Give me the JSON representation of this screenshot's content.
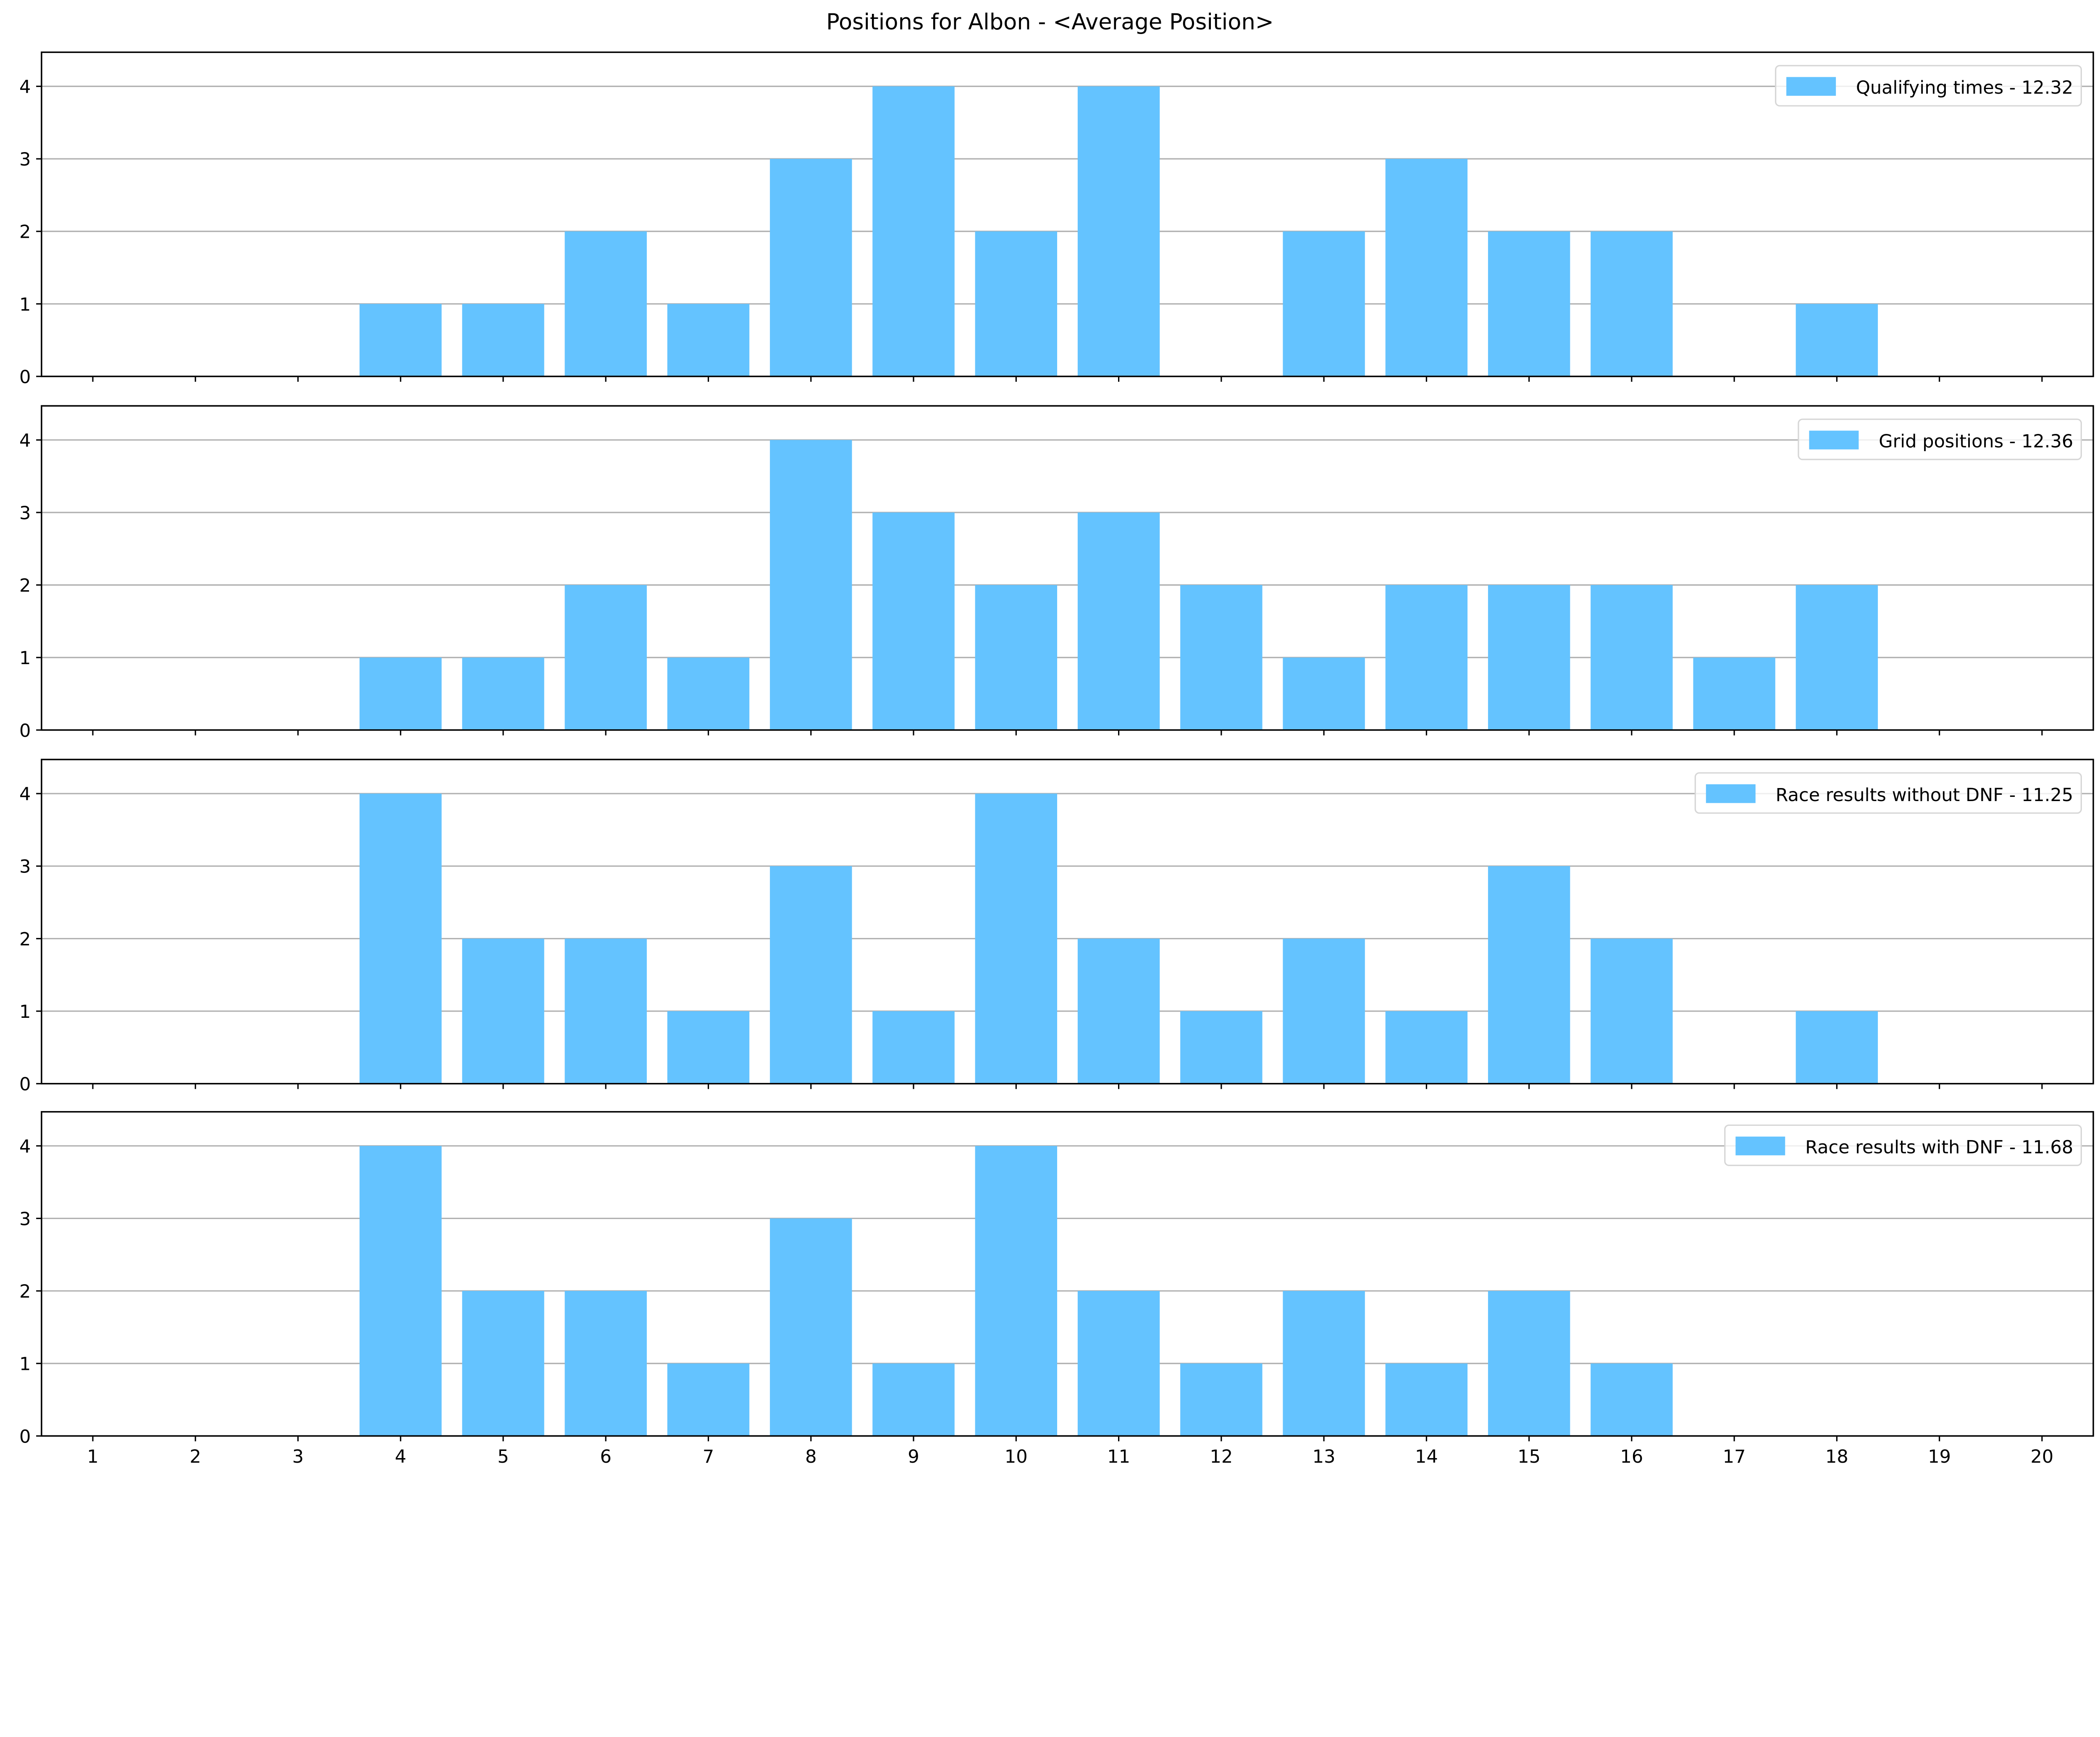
{
  "chart_data": [
    {
      "type": "bar",
      "title": "Positions for Albon - <Average Position>",
      "legend": "Qualifying times - 12.32",
      "legend_placement": "top-right",
      "categories": [
        1,
        2,
        3,
        4,
        5,
        6,
        7,
        8,
        9,
        10,
        11,
        12,
        13,
        14,
        15,
        16,
        17,
        18,
        19,
        20
      ],
      "values": [
        0,
        0,
        0,
        1,
        1,
        2,
        1,
        3,
        4,
        2,
        4,
        0,
        2,
        3,
        2,
        2,
        0,
        1,
        0,
        0
      ],
      "xlim": [
        0.5,
        20.5
      ],
      "ylim": [
        0,
        4.47
      ],
      "yticks": [
        0,
        1,
        2,
        3,
        4
      ],
      "grid": "y",
      "color": "#64c3ff"
    },
    {
      "type": "bar",
      "legend": "Grid positions - 12.36",
      "legend_placement": "top-right",
      "categories": [
        1,
        2,
        3,
        4,
        5,
        6,
        7,
        8,
        9,
        10,
        11,
        12,
        13,
        14,
        15,
        16,
        17,
        18,
        19,
        20
      ],
      "values": [
        0,
        0,
        0,
        1,
        1,
        2,
        1,
        4,
        3,
        2,
        3,
        2,
        1,
        2,
        2,
        2,
        1,
        2,
        0,
        0
      ],
      "xlim": [
        0.5,
        20.5
      ],
      "ylim": [
        0,
        4.47
      ],
      "yticks": [
        0,
        1,
        2,
        3,
        4
      ],
      "grid": "y",
      "color": "#64c3ff"
    },
    {
      "type": "bar",
      "legend": "Race results without DNF - 11.25",
      "legend_placement": "top-right",
      "categories": [
        1,
        2,
        3,
        4,
        5,
        6,
        7,
        8,
        9,
        10,
        11,
        12,
        13,
        14,
        15,
        16,
        17,
        18,
        19,
        20
      ],
      "values": [
        0,
        0,
        0,
        4,
        2,
        2,
        1,
        3,
        1,
        4,
        2,
        1,
        2,
        1,
        3,
        2,
        0,
        1,
        0,
        0
      ],
      "xlim": [
        0.5,
        20.5
      ],
      "ylim": [
        0,
        4.47
      ],
      "yticks": [
        0,
        1,
        2,
        3,
        4
      ],
      "grid": "y",
      "color": "#64c3ff"
    },
    {
      "type": "bar",
      "legend": "Race results with DNF - 11.68",
      "legend_placement": "top-right",
      "categories": [
        1,
        2,
        3,
        4,
        5,
        6,
        7,
        8,
        9,
        10,
        11,
        12,
        13,
        14,
        15,
        16,
        17,
        18,
        19,
        20
      ],
      "values": [
        0,
        0,
        0,
        4,
        2,
        2,
        1,
        3,
        1,
        4,
        2,
        1,
        2,
        1,
        2,
        1,
        0,
        0,
        0,
        0
      ],
      "xlim": [
        0.5,
        20.5
      ],
      "ylim": [
        0,
        4.47
      ],
      "yticks": [
        0,
        1,
        2,
        3,
        4
      ],
      "grid": "y",
      "color": "#64c3ff"
    }
  ]
}
